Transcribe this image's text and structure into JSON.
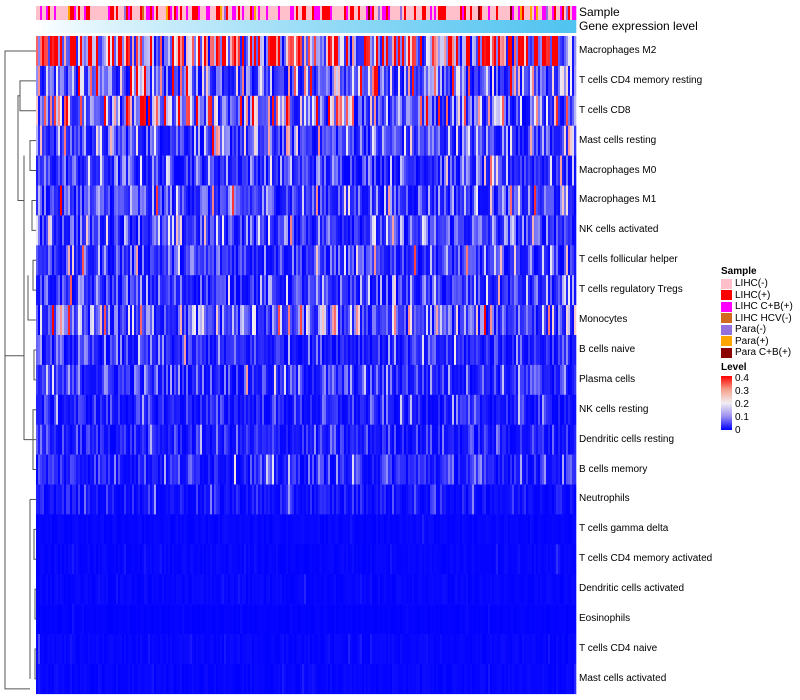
{
  "chart_data": {
    "type": "heatmap",
    "annotations": [
      {
        "label": "Sample",
        "type": "categorical"
      },
      {
        "label": "Gene expression level",
        "type": "continuous"
      }
    ],
    "rows": [
      {
        "label": "Macrophages M2",
        "mean_level": 0.3
      },
      {
        "label": "T cells CD4 memory resting",
        "mean_level": 0.12
      },
      {
        "label": "T cells CD8",
        "mean_level": 0.15
      },
      {
        "label": "Mast cells resting",
        "mean_level": 0.08
      },
      {
        "label": "Macrophages M0",
        "mean_level": 0.06
      },
      {
        "label": "Macrophages M1",
        "mean_level": 0.07
      },
      {
        "label": "NK cells activated",
        "mean_level": 0.07
      },
      {
        "label": "T cells follicular helper",
        "mean_level": 0.06
      },
      {
        "label": "T cells regulatory  Tregs",
        "mean_level": 0.05
      },
      {
        "label": "Monocytes",
        "mean_level": 0.09
      },
      {
        "label": "B cells naive",
        "mean_level": 0.04
      },
      {
        "label": "Plasma cells",
        "mean_level": 0.05
      },
      {
        "label": "NK cells resting",
        "mean_level": 0.03
      },
      {
        "label": "Dendritic cells resting",
        "mean_level": 0.03
      },
      {
        "label": "B cells memory",
        "mean_level": 0.04
      },
      {
        "label": "Neutrophils",
        "mean_level": 0.02
      },
      {
        "label": "T cells gamma delta",
        "mean_level": 0.01
      },
      {
        "label": "T cells CD4 memory activated",
        "mean_level": 0.01
      },
      {
        "label": "Dendritic cells activated",
        "mean_level": 0.01
      },
      {
        "label": "Eosinophils",
        "mean_level": 0.005
      },
      {
        "label": "T cells CD4 naive",
        "mean_level": 0.01
      },
      {
        "label": "Mast cells activated",
        "mean_level": 0.01
      }
    ],
    "sample_legend": {
      "title": "Sample",
      "items": [
        {
          "label": "LIHC(-)",
          "color": "#ffc0cb"
        },
        {
          "label": "LIHC(+)",
          "color": "#ff0000"
        },
        {
          "label": "LIHC C+B(+)",
          "color": "#ff00ff"
        },
        {
          "label": "LIHC HCV(-)",
          "color": "#d2691e"
        },
        {
          "label": "Para(-)",
          "color": "#9370db"
        },
        {
          "label": "Para(+)",
          "color": "#ffa500"
        },
        {
          "label": "Para C+B(+)",
          "color": "#8b0000"
        }
      ]
    },
    "level_legend": {
      "title": "Level",
      "range": [
        0,
        0.4
      ],
      "ticks": [
        "0.4",
        "0.3",
        "0.2",
        "0.1",
        "0"
      ],
      "colors": {
        "low": "#0000ff",
        "mid": "#f2eef2",
        "high": "#ff0000"
      }
    },
    "gene_level_colors": {
      "low": "#ffffff",
      "high": "#4fc3f0"
    }
  }
}
